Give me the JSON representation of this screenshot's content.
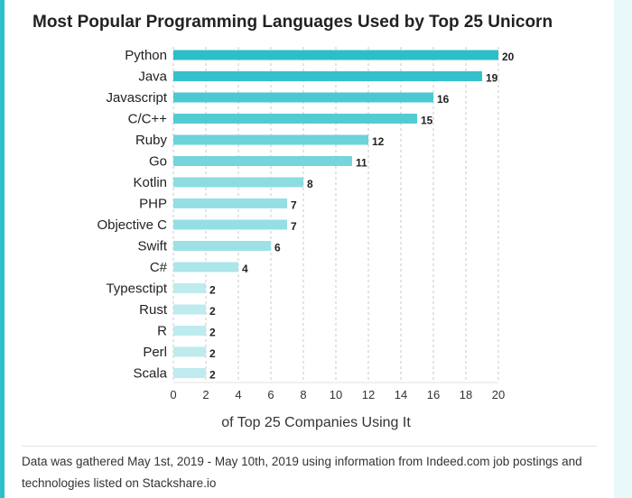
{
  "chart_data": {
    "type": "bar",
    "orientation": "horizontal",
    "title": "Most Popular Programming Languages Used by Top 25 Unicorn",
    "xlabel": "of Top 25 Companies Using It",
    "ylabel": "",
    "categories": [
      "Python",
      "Java",
      "Javascript",
      "C/C++",
      "Ruby",
      "Go",
      "Kotlin",
      "PHP",
      "Objective C",
      "Swift",
      "C#",
      "Typesctipt",
      "Rust",
      "R",
      "Perl",
      "Scala"
    ],
    "values": [
      20,
      19,
      16,
      15,
      12,
      11,
      8,
      7,
      7,
      6,
      4,
      2,
      2,
      2,
      2,
      2
    ],
    "xlim": [
      0,
      20
    ],
    "xticks": [
      0,
      2,
      4,
      6,
      8,
      10,
      12,
      14,
      16,
      18,
      20
    ],
    "grid": "vertical dashed",
    "colors": {
      "max": "#2bbfc9",
      "min": "#bdebee"
    }
  },
  "footnote": "Data was gathered May 1st, 2019 - May 10th, 2019 using information from Indeed.com job postings and technologies listed on Stackshare.io"
}
